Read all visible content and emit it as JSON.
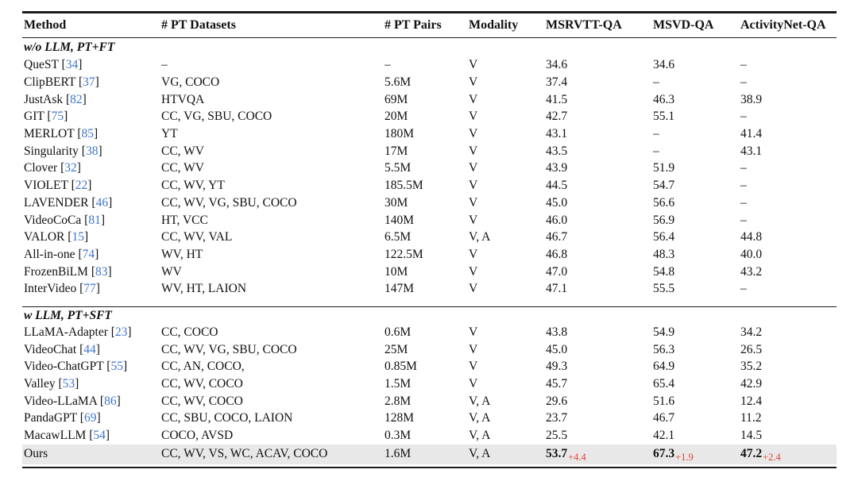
{
  "colors": {
    "citation_blue": "#4076c6",
    "delta_red": "#e2453a",
    "highlight_gray": "#e8e8e8",
    "rule_black": "#1b1b1b"
  },
  "table": {
    "columns": [
      "Method",
      "# PT Datasets",
      "# PT Pairs",
      "Modality",
      "MSRVTT-QA",
      "MSVD-QA",
      "ActivityNet-QA"
    ],
    "sections": [
      {
        "label": "w/o LLM, PT+FT",
        "rows": [
          {
            "name": "QueST",
            "ref": "34",
            "datasets": "–",
            "pairs": "–",
            "modality": "V",
            "scores": [
              "34.6",
              "34.6",
              "–"
            ]
          },
          {
            "name": "ClipBERT",
            "ref": "37",
            "datasets": "VG, COCO",
            "pairs": "5.6M",
            "modality": "V",
            "scores": [
              "37.4",
              "–",
              "–"
            ]
          },
          {
            "name": "JustAsk",
            "ref": "82",
            "datasets": "HTVQA",
            "pairs": "69M",
            "modality": "V",
            "scores": [
              "41.5",
              "46.3",
              "38.9"
            ]
          },
          {
            "name": "GIT",
            "ref": "75",
            "datasets": "CC, VG, SBU, COCO",
            "pairs": "20M",
            "modality": "V",
            "scores": [
              "42.7",
              "55.1",
              "–"
            ]
          },
          {
            "name": "MERLOT",
            "ref": "85",
            "datasets": "YT",
            "pairs": "180M",
            "modality": "V",
            "scores": [
              "43.1",
              "–",
              "41.4"
            ]
          },
          {
            "name": "Singularity",
            "ref": "38",
            "datasets": "CC, WV",
            "pairs": "17M",
            "modality": "V",
            "scores": [
              "43.5",
              "–",
              "43.1"
            ]
          },
          {
            "name": "Clover",
            "ref": "32",
            "datasets": "CC, WV",
            "pairs": "5.5M",
            "modality": "V",
            "scores": [
              "43.9",
              "51.9",
              "–"
            ]
          },
          {
            "name": "VIOLET",
            "ref": "22",
            "datasets": "CC, WV, YT",
            "pairs": "185.5M",
            "modality": "V",
            "scores": [
              "44.5",
              "54.7",
              "–"
            ]
          },
          {
            "name": "LAVENDER",
            "ref": "46",
            "datasets": "CC, WV, VG, SBU, COCO",
            "pairs": "30M",
            "modality": "V",
            "scores": [
              "45.0",
              "56.6",
              "–"
            ]
          },
          {
            "name": "VideoCoCa",
            "ref": "81",
            "datasets": "HT, VCC",
            "pairs": "140M",
            "modality": "V",
            "scores": [
              "46.0",
              "56.9",
              "–"
            ]
          },
          {
            "name": "VALOR",
            "ref": "15",
            "datasets": "CC, WV, VAL",
            "pairs": "6.5M",
            "modality": "V, A",
            "scores": [
              "46.7",
              "56.4",
              "44.8"
            ]
          },
          {
            "name": "All-in-one",
            "ref": "74",
            "datasets": "WV, HT",
            "pairs": "122.5M",
            "modality": "V",
            "scores": [
              "46.8",
              "48.3",
              "40.0"
            ]
          },
          {
            "name": "FrozenBiLM",
            "ref": "83",
            "datasets": "WV",
            "pairs": "10M",
            "modality": "V",
            "scores": [
              "47.0",
              "54.8",
              "43.2"
            ]
          },
          {
            "name": "InterVideo",
            "ref": "77",
            "datasets": "WV, HT, LAION",
            "pairs": "147M",
            "modality": "V",
            "scores": [
              "47.1",
              "55.5",
              "–"
            ]
          }
        ]
      },
      {
        "label": "w LLM, PT+SFT",
        "rows": [
          {
            "name": "LLaMA-Adapter",
            "ref": "23",
            "datasets": "CC, COCO",
            "pairs": "0.6M",
            "modality": "V",
            "scores": [
              "43.8",
              "54.9",
              "34.2"
            ]
          },
          {
            "name": "VideoChat",
            "ref": "44",
            "datasets": "CC, WV, VG, SBU, COCO",
            "pairs": "25M",
            "modality": "V",
            "scores": [
              "45.0",
              "56.3",
              "26.5"
            ]
          },
          {
            "name": "Video-ChatGPT",
            "ref": "55",
            "datasets": "CC, AN, COCO,",
            "pairs": "0.85M",
            "modality": "V",
            "scores": [
              "49.3",
              "64.9",
              "35.2"
            ]
          },
          {
            "name": "Valley",
            "ref": "53",
            "datasets": "CC, WV, COCO",
            "pairs": "1.5M",
            "modality": "V",
            "scores": [
              "45.7",
              "65.4",
              "42.9"
            ]
          },
          {
            "name": "Video-LLaMA",
            "ref": "86",
            "datasets": "CC, WV, COCO",
            "pairs": "2.8M",
            "modality": "V, A",
            "scores": [
              "29.6",
              "51.6",
              "12.4"
            ]
          },
          {
            "name": "PandaGPT",
            "ref": "69",
            "datasets": "CC, SBU, COCO, LAION",
            "pairs": "128M",
            "modality": "V, A",
            "scores": [
              "23.7",
              "46.7",
              "11.2"
            ]
          },
          {
            "name": "MacawLLM",
            "ref": "54",
            "datasets": "COCO, AVSD",
            "pairs": "0.3M",
            "modality": "V, A",
            "scores": [
              "25.5",
              "42.1",
              "14.5"
            ]
          },
          {
            "name": "Ours",
            "ref": null,
            "highlight": true,
            "datasets": "CC, WV, VS, WC, ACAV, COCO",
            "pairs": "1.6M",
            "modality": "V, A",
            "scores": [
              {
                "value": "53.7",
                "delta": "+4.4"
              },
              {
                "value": "67.3",
                "delta": "+1.9"
              },
              {
                "value": "47.2",
                "delta": "+2.4"
              }
            ]
          }
        ]
      }
    ]
  }
}
